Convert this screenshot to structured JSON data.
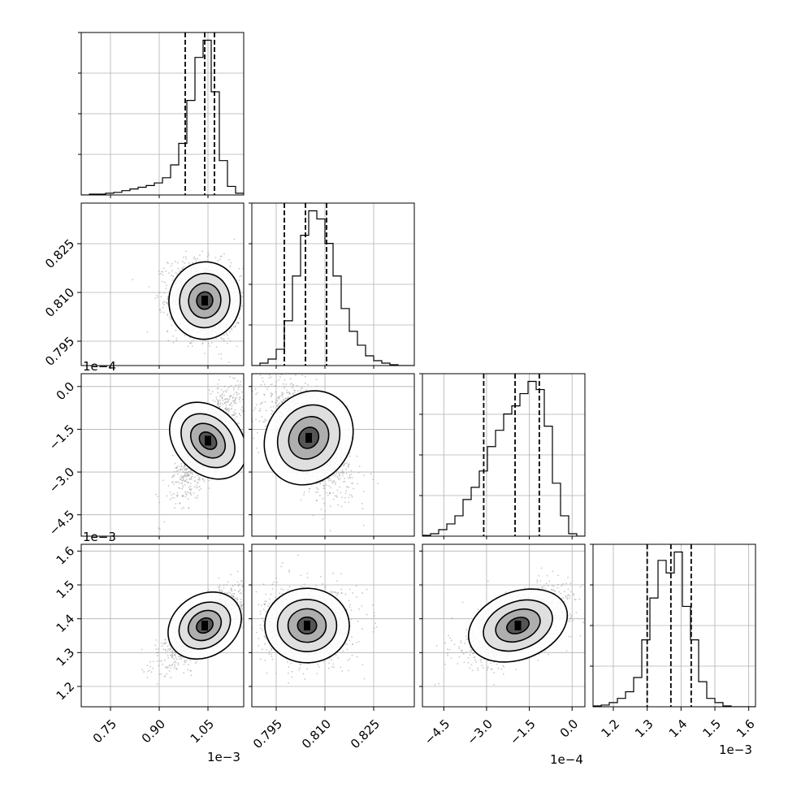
{
  "chart_data": {
    "type": "corner",
    "parameters": [
      {
        "index": 0,
        "range": [
          0.66,
          1.16
        ],
        "offset_text": "1e−3",
        "ticks": [
          0.75,
          0.9,
          1.05
        ],
        "tick_labels": [
          "0.75",
          "0.90",
          "1.05"
        ],
        "quantiles": [
          0.98,
          1.04,
          1.07
        ]
      },
      {
        "index": 1,
        "range": [
          0.7875,
          0.8375
        ],
        "offset_text": "",
        "ticks": [
          0.795,
          0.81,
          0.825
        ],
        "tick_labels": [
          "0.795",
          "0.810",
          "0.825"
        ],
        "quantiles": [
          0.7975,
          0.804,
          0.8105
        ]
      },
      {
        "index": 2,
        "range": [
          -5.25,
          0.45
        ],
        "offset_text": "1e−4",
        "ticks": [
          -4.5,
          -3.0,
          -1.5,
          0.0
        ],
        "tick_labels": [
          "−4.5",
          "−3.0",
          "−1.5",
          "0.0"
        ],
        "quantiles": [
          -3.1,
          -2.0,
          -1.15
        ]
      },
      {
        "index": 3,
        "range": [
          1.14,
          1.62
        ],
        "offset_text": "1e−3",
        "ticks": [
          1.2,
          1.3,
          1.4,
          1.5,
          1.6
        ],
        "tick_labels": [
          "1.2",
          "1.3",
          "1.4",
          "1.5",
          "1.6"
        ],
        "quantiles": [
          1.3,
          1.37,
          1.43
        ]
      }
    ],
    "histograms": [
      {
        "param": 0,
        "bin_edges": [
          0.66,
          0.685,
          0.71,
          0.735,
          0.76,
          0.785,
          0.81,
          0.835,
          0.86,
          0.885,
          0.91,
          0.935,
          0.96,
          0.985,
          1.01,
          1.035,
          1.06,
          1.085,
          1.11,
          1.135,
          1.16
        ],
        "counts": [
          0,
          1,
          1,
          2,
          3,
          5,
          7,
          9,
          11,
          14,
          20,
          35,
          60,
          110,
          160,
          180,
          120,
          40,
          10,
          2
        ]
      },
      {
        "param": 1,
        "bin_edges": [
          0.7875,
          0.79,
          0.7925,
          0.795,
          0.7975,
          0.8,
          0.8025,
          0.805,
          0.8075,
          0.81,
          0.8125,
          0.815,
          0.8175,
          0.82,
          0.8225,
          0.825,
          0.8275,
          0.83,
          0.8325,
          0.835,
          0.8375
        ],
        "counts": [
          0,
          3,
          8,
          20,
          55,
          110,
          160,
          190,
          180,
          150,
          110,
          70,
          42,
          25,
          12,
          6,
          3,
          1,
          0,
          0
        ]
      },
      {
        "param": 2,
        "bin_edges": [
          -5.25,
          -4.965,
          -4.68,
          -4.395,
          -4.11,
          -3.825,
          -3.54,
          -3.255,
          -2.97,
          -2.685,
          -2.4,
          -2.115,
          -1.83,
          -1.545,
          -1.26,
          -0.975,
          -0.69,
          -0.405,
          -0.12,
          0.165,
          0.45
        ],
        "counts": [
          1,
          3,
          8,
          15,
          25,
          45,
          60,
          80,
          110,
          130,
          150,
          160,
          175,
          190,
          180,
          135,
          65,
          25,
          3,
          0
        ]
      },
      {
        "param": 3,
        "bin_edges": [
          1.14,
          1.164,
          1.188,
          1.212,
          1.236,
          1.26,
          1.284,
          1.308,
          1.332,
          1.356,
          1.38,
          1.404,
          1.428,
          1.452,
          1.476,
          1.5,
          1.524,
          1.548,
          1.572,
          1.596,
          1.62
        ],
        "counts": [
          1,
          2,
          5,
          10,
          18,
          35,
          80,
          130,
          175,
          160,
          185,
          120,
          80,
          30,
          10,
          5,
          1,
          0,
          0,
          0
        ]
      }
    ],
    "pairs": [
      {
        "x": 0,
        "y": 1,
        "mean": [
          1.04,
          0.8075
        ],
        "sd": [
          0.055,
          0.006
        ],
        "corr": -0.15
      },
      {
        "x": 0,
        "y": 2,
        "mean": [
          1.05,
          -1.9
        ],
        "sd": [
          0.05,
          0.9
        ],
        "corr": 0.75
      },
      {
        "x": 1,
        "y": 2,
        "mean": [
          0.805,
          -1.8
        ],
        "sd": [
          0.0065,
          0.95
        ],
        "corr": -0.6
      },
      {
        "x": 0,
        "y": 3,
        "mean": [
          1.04,
          1.38
        ],
        "sd": [
          0.06,
          0.055
        ],
        "corr": 0.8
      },
      {
        "x": 1,
        "y": 3,
        "mean": [
          0.8045,
          1.38
        ],
        "sd": [
          0.0065,
          0.055
        ],
        "corr": 0.0
      },
      {
        "x": 2,
        "y": 3,
        "mean": [
          -1.9,
          1.38
        ],
        "sd": [
          0.9,
          0.055
        ],
        "corr": 0.6
      }
    ],
    "colors": {
      "points": "#9a9a9a",
      "contour": "#000000",
      "grid": "#b0b0b0"
    }
  }
}
